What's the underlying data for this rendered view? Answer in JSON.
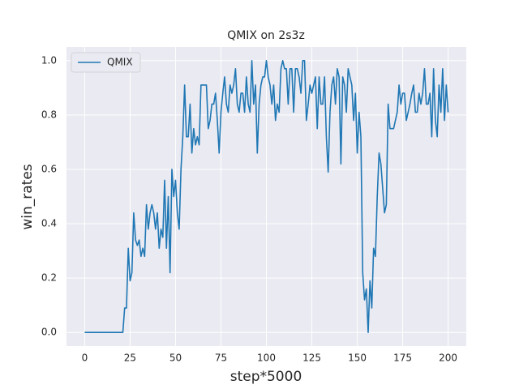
{
  "chart_data": {
    "type": "line",
    "title": "QMIX on 2s3z",
    "xlabel": "step*5000",
    "ylabel": "win_rates",
    "x": [
      0,
      1,
      2,
      3,
      4,
      5,
      6,
      7,
      8,
      9,
      10,
      11,
      12,
      13,
      14,
      15,
      16,
      17,
      18,
      19,
      20,
      21,
      22,
      23,
      24,
      25,
      26,
      27,
      28,
      29,
      30,
      31,
      32,
      33,
      34,
      35,
      36,
      37,
      38,
      39,
      40,
      41,
      42,
      43,
      44,
      45,
      46,
      47,
      48,
      49,
      50,
      51,
      52,
      53,
      54,
      55,
      56,
      57,
      58,
      59,
      60,
      61,
      62,
      63,
      64,
      65,
      66,
      67,
      68,
      69,
      70,
      71,
      72,
      73,
      74,
      75,
      76,
      77,
      78,
      79,
      80,
      81,
      82,
      83,
      84,
      85,
      86,
      87,
      88,
      89,
      90,
      91,
      92,
      93,
      94,
      95,
      96,
      97,
      98,
      99,
      100,
      101,
      102,
      103,
      104,
      105,
      106,
      107,
      108,
      109,
      110,
      111,
      112,
      113,
      114,
      115,
      116,
      117,
      118,
      119,
      120,
      121,
      122,
      123,
      124,
      125,
      126,
      127,
      128,
      129,
      130,
      131,
      132,
      133,
      134,
      135,
      136,
      137,
      138,
      139,
      140,
      141,
      142,
      143,
      144,
      145,
      146,
      147,
      148,
      149,
      150,
      151,
      152,
      153,
      154,
      155,
      156,
      157,
      158,
      159,
      160,
      161,
      162,
      163,
      164,
      165,
      166,
      167,
      168,
      169,
      170,
      171,
      172,
      173,
      174,
      175,
      176,
      177,
      178,
      179,
      180,
      181,
      182,
      183,
      184,
      185,
      186,
      187,
      188,
      189,
      190,
      191,
      192,
      193,
      194,
      195,
      196,
      197,
      198,
      199,
      200
    ],
    "series": [
      {
        "name": "QMIX",
        "color": "#1f77b4",
        "values": [
          0,
          0,
          0,
          0,
          0,
          0,
          0,
          0,
          0,
          0,
          0,
          0,
          0,
          0,
          0,
          0,
          0,
          0,
          0,
          0,
          0,
          0,
          0.09,
          0.09,
          0.31,
          0.19,
          0.22,
          0.44,
          0.34,
          0.32,
          0.34,
          0.28,
          0.31,
          0.28,
          0.47,
          0.38,
          0.44,
          0.47,
          0.44,
          0.38,
          0.44,
          0.31,
          0.38,
          0.35,
          0.56,
          0.31,
          0.5,
          0.22,
          0.6,
          0.5,
          0.56,
          0.44,
          0.38,
          0.6,
          0.72,
          0.91,
          0.72,
          0.72,
          0.84,
          0.66,
          0.75,
          0.69,
          0.72,
          0.69,
          0.91,
          0.91,
          0.91,
          0.91,
          0.75,
          0.78,
          0.84,
          0.84,
          0.88,
          0.78,
          0.66,
          0.81,
          0.88,
          0.94,
          0.84,
          0.81,
          0.91,
          0.88,
          0.91,
          0.97,
          0.84,
          0.81,
          0.88,
          0.88,
          0.81,
          0.94,
          0.84,
          0.81,
          1.0,
          0.84,
          0.91,
          0.66,
          0.84,
          0.91,
          0.94,
          0.94,
          1.0,
          0.94,
          0.91,
          0.84,
          0.91,
          0.78,
          0.84,
          0.81,
          0.97,
          1.0,
          0.97,
          0.97,
          0.84,
          0.97,
          0.97,
          0.81,
          0.97,
          0.97,
          0.94,
          0.88,
          1.0,
          1.0,
          0.78,
          0.84,
          0.91,
          0.88,
          0.91,
          0.94,
          0.75,
          0.94,
          0.84,
          0.84,
          0.94,
          0.72,
          0.59,
          0.81,
          0.91,
          0.94,
          0.84,
          0.97,
          0.94,
          0.62,
          0.94,
          0.91,
          0.81,
          0.97,
          0.94,
          0.91,
          0.78,
          0.88,
          0.66,
          0.81,
          0.72,
          0.22,
          0.12,
          0.16,
          0.0,
          0.19,
          0.09,
          0.31,
          0.28,
          0.5,
          0.66,
          0.62,
          0.53,
          0.44,
          0.47,
          0.84,
          0.75,
          0.75,
          0.75,
          0.78,
          0.81,
          0.91,
          0.84,
          0.88,
          0.88,
          0.78,
          0.81,
          0.84,
          0.88,
          0.91,
          0.81,
          0.81,
          0.88,
          0.84,
          0.88,
          0.97,
          0.84,
          0.84,
          0.88,
          0.72,
          0.97,
          0.78,
          0.72,
          0.91,
          0.81,
          0.97,
          0.78,
          0.91,
          0.81
        ]
      }
    ],
    "xlim": [
      -10,
      210
    ],
    "ylim": [
      -0.05,
      1.05
    ],
    "xticks": [
      0,
      25,
      50,
      75,
      100,
      125,
      150,
      175,
      200
    ],
    "yticks": [
      {
        "value": 0,
        "label": "0.0"
      },
      {
        "value": 0.2,
        "label": "0.2"
      },
      {
        "value": 0.4,
        "label": "0.4"
      },
      {
        "value": 0.6,
        "label": "0.6"
      },
      {
        "value": 0.8,
        "label": "0.8"
      },
      {
        "value": 1.0,
        "label": "1.0"
      }
    ],
    "grid": true,
    "legend": "upper left"
  }
}
